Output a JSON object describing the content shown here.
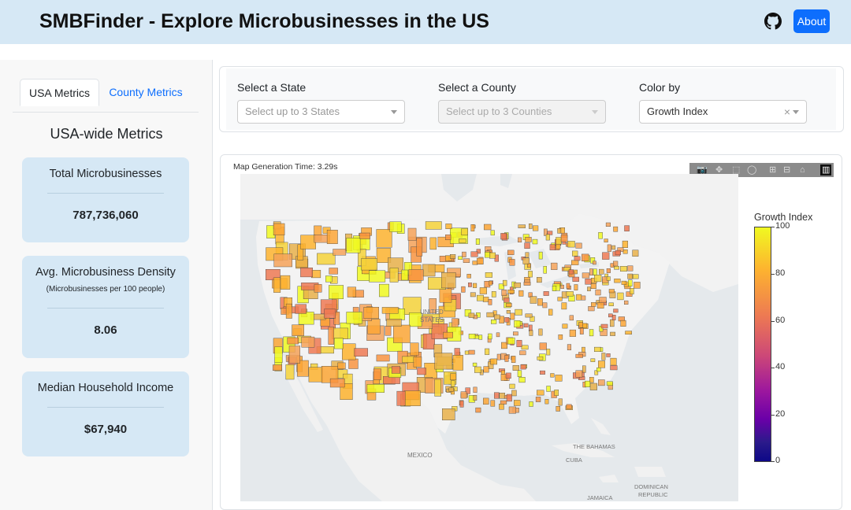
{
  "header": {
    "title": "SMBFinder - Explore Microbusinesses in the US",
    "about_label": "About",
    "github_icon": "github-icon"
  },
  "sidebar": {
    "tabs": [
      {
        "label": "USA Metrics",
        "active": true
      },
      {
        "label": "County Metrics",
        "active": false
      }
    ],
    "heading": "USA-wide Metrics",
    "cards": [
      {
        "title": "Total Microbusinesses",
        "subtitle": "",
        "value": "787,736,060"
      },
      {
        "title": "Avg. Microbusiness Density",
        "subtitle": "(Microbusinesses per 100 people)",
        "value": "8.06"
      },
      {
        "title": "Median Household Income",
        "subtitle": "",
        "value": "$67,940"
      }
    ]
  },
  "filters": {
    "state": {
      "label": "Select a State",
      "placeholder": "Select up to 3 States"
    },
    "county": {
      "label": "Select a County",
      "placeholder": "Select up to 3 Counties"
    },
    "color_by": {
      "label": "Color by",
      "value": "Growth Index",
      "clear": "×"
    }
  },
  "map": {
    "generation_time": "Map Generation Time: 3.29s",
    "labels": {
      "united_states": [
        "UNITED",
        "STATES"
      ],
      "mexico": "MEXICO",
      "bahamas": "THE BAHAMAS",
      "cuba": "CUBA",
      "dominican": [
        "DOMINICAN",
        "REPUBLIC"
      ],
      "jamaica": "JAMAICA"
    },
    "colorbar": {
      "title": "Growth Index",
      "ticks": [
        "100",
        "80",
        "60",
        "40",
        "20",
        "0"
      ],
      "colors": [
        "#f0f921",
        "#fdb32f",
        "#ed7953",
        "#cc4778",
        "#9c179e",
        "#6a00a8",
        "#0d0887"
      ]
    },
    "modebar_icons": [
      "camera-icon",
      "pan-icon",
      "box-select-icon",
      "lasso-icon",
      "zoom-in-icon",
      "zoom-out-icon",
      "home-icon",
      "plotly-logo-icon"
    ]
  }
}
